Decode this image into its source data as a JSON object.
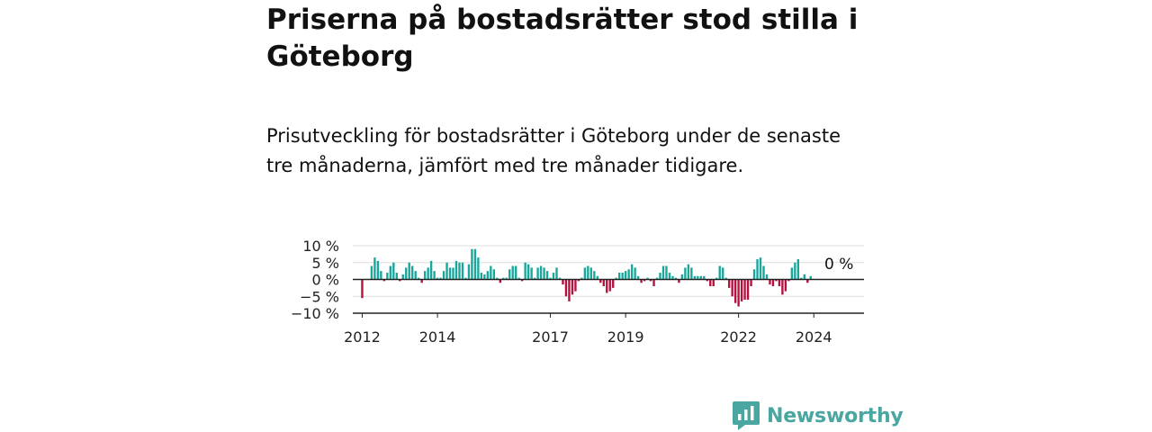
{
  "title": "Priserna på bostadsrätter stod stilla i Göteborg",
  "subtitle": "Prisutveckling för bostadsrätter i Göteborg under de senaste tre månaderna, jämfört med tre månader tidigare.",
  "brand": {
    "name": "Newsworthy",
    "icon": "newsworthy-logo-icon",
    "color": "#4aa6a0"
  },
  "chart_data": {
    "type": "bar",
    "unit": "%",
    "x_start": "2011-10",
    "x_end": "2025-05",
    "x_ticks": [
      "2012",
      "2014",
      "2017",
      "2019",
      "2022",
      "2024"
    ],
    "y_ticks": [
      "10 %",
      "5 %",
      "0 %",
      "−5 %",
      "−10 %"
    ],
    "ylim": [
      -10,
      10
    ],
    "grid": true,
    "positive_color": "#1aa79b",
    "negative_color": "#b5113f",
    "last_value_label": "0 %",
    "series": [
      {
        "start": "2011-10",
        "values": [
          0,
          0,
          0,
          -5.5,
          0,
          0,
          4,
          6.5,
          5.5,
          2.5,
          -0.5,
          2,
          4,
          5,
          2,
          -0.5,
          1.5,
          3.5,
          5,
          4,
          2.5,
          0.5,
          -1,
          2.5,
          3.5,
          5.5,
          2.5,
          0.5,
          0.5,
          2.5,
          5,
          3.5,
          3.5,
          5.5,
          5,
          5,
          0.5,
          4.5,
          9,
          9,
          6.5,
          2,
          1.5,
          2.5,
          4,
          3,
          0.5,
          -1,
          0.5,
          0.5,
          3,
          4,
          4,
          0.5,
          -0.5,
          5,
          4.5,
          3.5,
          0.5,
          3.5,
          4,
          3.5,
          2.5,
          0.5,
          2,
          3.5,
          0.5,
          -1.5,
          -5,
          -6.5,
          -4.5,
          -3.5,
          -0.5,
          0.5,
          3.5,
          4,
          3.5,
          2.5,
          1,
          -1,
          -2,
          -4,
          -3.5,
          -2.5,
          0.5,
          2,
          2,
          2.5,
          3,
          4.5,
          3.5,
          1,
          -1,
          -0.5,
          0.5,
          -0.5,
          -2,
          0.5,
          2,
          4,
          4,
          2,
          1,
          0.5,
          -1,
          1.5,
          3.5,
          4.5,
          3.5,
          1,
          1,
          1,
          1,
          -0.5,
          -2,
          -2,
          0.5,
          4,
          3.5,
          0.5,
          -2.5,
          -5,
          -7,
          -8,
          -6.5,
          -6,
          -6,
          -2,
          3,
          6,
          6.5,
          4,
          1.5,
          -1.5,
          -2,
          -0.5,
          -2,
          -4.5,
          -3.5,
          -0.5,
          3.5,
          5,
          6,
          0.5,
          1.5,
          -1,
          1,
          0,
          0
        ]
      }
    ]
  }
}
